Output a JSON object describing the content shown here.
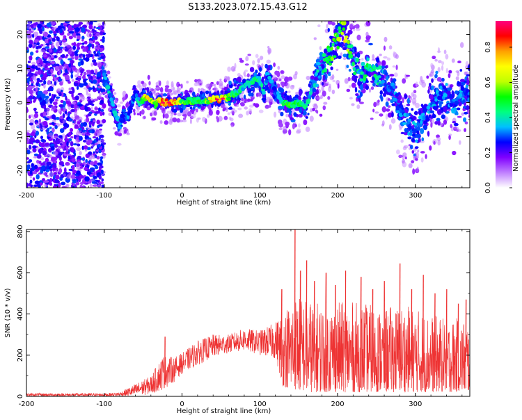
{
  "title": "S133.2023.072.15.43.G12",
  "chart_data": [
    {
      "type": "heatmap",
      "xlabel": "Height of straight line (km)",
      "ylabel": "Frequency (Hz)",
      "xlim": [
        -200,
        370
      ],
      "ylim": [
        -25,
        24
      ],
      "x_ticks": [
        -200,
        -100,
        0,
        100,
        200,
        300
      ],
      "y_ticks": [
        -20,
        -10,
        0,
        10,
        20
      ],
      "colorbar": {
        "label": "Normalized spectral amplitude",
        "range": [
          0,
          0.95
        ],
        "ticks": [
          0.0,
          0.2,
          0.4,
          0.6,
          0.8
        ],
        "colors": [
          "#ffffff",
          "#c080ff",
          "#8000ff",
          "#0000ff",
          "#00c0ff",
          "#00ff80",
          "#00ff00",
          "#c0ff00",
          "#ffff00",
          "#ffa000",
          "#ff0000",
          "#ff0080"
        ]
      },
      "ridge": {
        "description_points": [
          {
            "x": -100,
            "f": 8,
            "a": 0.35
          },
          {
            "x": -95,
            "f": 4,
            "a": 0.45
          },
          {
            "x": -90,
            "f": 0,
            "a": 0.4
          },
          {
            "x": -85,
            "f": -4,
            "a": 0.4
          },
          {
            "x": -80,
            "f": -7,
            "a": 0.35
          },
          {
            "x": -75,
            "f": -3,
            "a": 0.3
          },
          {
            "x": -70,
            "f": -4,
            "a": 0.35
          },
          {
            "x": -65,
            "f": -1,
            "a": 0.3
          },
          {
            "x": -60,
            "f": 3,
            "a": 0.35
          },
          {
            "x": -55,
            "f": 0,
            "a": 0.45
          },
          {
            "x": -50,
            "f": 1,
            "a": 0.55
          },
          {
            "x": -45,
            "f": 2,
            "a": 0.8
          },
          {
            "x": -40,
            "f": 1,
            "a": 0.7
          },
          {
            "x": -35,
            "f": -1,
            "a": 0.65
          },
          {
            "x": -30,
            "f": 0.5,
            "a": 0.75
          },
          {
            "x": -25,
            "f": 0,
            "a": 0.85
          },
          {
            "x": -20,
            "f": 0,
            "a": 0.9
          },
          {
            "x": -10,
            "f": 0,
            "a": 0.85
          },
          {
            "x": 0,
            "f": 0.5,
            "a": 0.6
          },
          {
            "x": 10,
            "f": 0.5,
            "a": 0.55
          },
          {
            "x": 20,
            "f": 0.5,
            "a": 0.5
          },
          {
            "x": 30,
            "f": 0.5,
            "a": 0.55
          },
          {
            "x": 40,
            "f": 0.8,
            "a": 0.85
          },
          {
            "x": 50,
            "f": 1,
            "a": 0.9
          },
          {
            "x": 60,
            "f": 1.5,
            "a": 0.6
          },
          {
            "x": 70,
            "f": 3,
            "a": 0.5
          },
          {
            "x": 80,
            "f": 5,
            "a": 0.45
          },
          {
            "x": 90,
            "f": 6,
            "a": 0.45
          },
          {
            "x": 100,
            "f": 7,
            "a": 0.45
          },
          {
            "x": 105,
            "f": 3,
            "a": 0.4
          },
          {
            "x": 110,
            "f": 8,
            "a": 0.35
          },
          {
            "x": 120,
            "f": 3,
            "a": 0.35
          },
          {
            "x": 130,
            "f": 0,
            "a": 0.5
          },
          {
            "x": 140,
            "f": -1,
            "a": 0.55
          },
          {
            "x": 150,
            "f": 0,
            "a": 0.5
          },
          {
            "x": 160,
            "f": -1,
            "a": 0.45
          },
          {
            "x": 165,
            "f": 3,
            "a": 0.4
          },
          {
            "x": 170,
            "f": 6,
            "a": 0.4
          },
          {
            "x": 180,
            "f": 11,
            "a": 0.45
          },
          {
            "x": 190,
            "f": 14,
            "a": 0.55
          },
          {
            "x": 200,
            "f": 18,
            "a": 0.6
          },
          {
            "x": 205,
            "f": 22,
            "a": 0.7
          },
          {
            "x": 210,
            "f": 20,
            "a": 0.7
          },
          {
            "x": 215,
            "f": 16,
            "a": 0.55
          },
          {
            "x": 220,
            "f": 12,
            "a": 0.45
          },
          {
            "x": 230,
            "f": 8,
            "a": 0.45
          },
          {
            "x": 240,
            "f": 10,
            "a": 0.5
          },
          {
            "x": 250,
            "f": 8,
            "a": 0.45
          },
          {
            "x": 260,
            "f": 7,
            "a": 0.4
          },
          {
            "x": 270,
            "f": 3,
            "a": 0.35
          },
          {
            "x": 280,
            "f": -2,
            "a": 0.35
          },
          {
            "x": 290,
            "f": -6,
            "a": 0.35
          },
          {
            "x": 300,
            "f": -9,
            "a": 0.35
          },
          {
            "x": 310,
            "f": -5,
            "a": 0.35
          },
          {
            "x": 320,
            "f": 0,
            "a": 0.35
          },
          {
            "x": 330,
            "f": 2,
            "a": 0.35
          },
          {
            "x": 340,
            "f": 3,
            "a": 0.35
          },
          {
            "x": 350,
            "f": -1,
            "a": 0.35
          },
          {
            "x": 360,
            "f": 3,
            "a": 0.35
          },
          {
            "x": 370,
            "f": 2,
            "a": 0.35
          }
        ]
      }
    },
    {
      "type": "line",
      "xlabel": "Height of straight line (km)",
      "ylabel": "SNR (10 * v/v)",
      "xlim": [
        -200,
        370
      ],
      "ylim": [
        0,
        810
      ],
      "x_ticks": [
        -200,
        -100,
        0,
        100,
        200,
        300
      ],
      "y_ticks": [
        0,
        200,
        400,
        600,
        800
      ],
      "color": "#ee3333",
      "envelope": [
        {
          "x": -200,
          "lo": 0,
          "hi": 15
        },
        {
          "x": -100,
          "lo": 0,
          "hi": 15
        },
        {
          "x": -80,
          "lo": 0,
          "hi": 20
        },
        {
          "x": -60,
          "lo": 0,
          "hi": 60
        },
        {
          "x": -40,
          "lo": 10,
          "hi": 100
        },
        {
          "x": -25,
          "lo": 30,
          "hi": 200
        },
        {
          "x": -10,
          "lo": 70,
          "hi": 190
        },
        {
          "x": 0,
          "lo": 110,
          "hi": 210
        },
        {
          "x": 20,
          "lo": 150,
          "hi": 270
        },
        {
          "x": 40,
          "lo": 190,
          "hi": 300
        },
        {
          "x": 60,
          "lo": 210,
          "hi": 300
        },
        {
          "x": 80,
          "lo": 220,
          "hi": 330
        },
        {
          "x": 100,
          "lo": 200,
          "hi": 320
        },
        {
          "x": 120,
          "lo": 180,
          "hi": 360
        },
        {
          "x": 130,
          "lo": 50,
          "hi": 420
        },
        {
          "x": 145,
          "lo": 30,
          "hi": 500
        },
        {
          "x": 160,
          "lo": 20,
          "hi": 480
        },
        {
          "x": 180,
          "lo": 20,
          "hi": 460
        },
        {
          "x": 200,
          "lo": 20,
          "hi": 460
        },
        {
          "x": 220,
          "lo": 20,
          "hi": 460
        },
        {
          "x": 240,
          "lo": 20,
          "hi": 450
        },
        {
          "x": 260,
          "lo": 20,
          "hi": 430
        },
        {
          "x": 280,
          "lo": 20,
          "hi": 450
        },
        {
          "x": 300,
          "lo": 20,
          "hi": 430
        },
        {
          "x": 320,
          "lo": 20,
          "hi": 400
        },
        {
          "x": 340,
          "lo": 20,
          "hi": 380
        },
        {
          "x": 370,
          "lo": 20,
          "hi": 380
        }
      ],
      "peaks": [
        {
          "x": -22,
          "y": 290
        },
        {
          "x": 128,
          "y": 520
        },
        {
          "x": 145,
          "y": 810
        },
        {
          "x": 152,
          "y": 610
        },
        {
          "x": 160,
          "y": 660
        },
        {
          "x": 170,
          "y": 560
        },
        {
          "x": 185,
          "y": 600
        },
        {
          "x": 197,
          "y": 540
        },
        {
          "x": 210,
          "y": 610
        },
        {
          "x": 230,
          "y": 580
        },
        {
          "x": 245,
          "y": 520
        },
        {
          "x": 260,
          "y": 560
        },
        {
          "x": 280,
          "y": 645
        },
        {
          "x": 295,
          "y": 520
        },
        {
          "x": 310,
          "y": 590
        },
        {
          "x": 325,
          "y": 500
        },
        {
          "x": 340,
          "y": 520
        },
        {
          "x": 355,
          "y": 450
        },
        {
          "x": 365,
          "y": 470
        }
      ]
    }
  ]
}
